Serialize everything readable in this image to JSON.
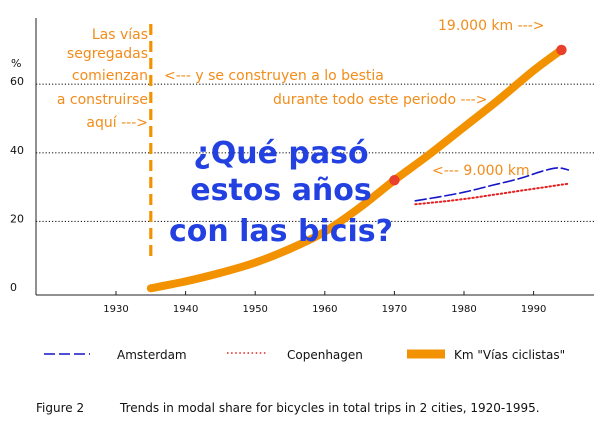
{
  "chart_data": {
    "type": "line",
    "title": "",
    "xlabel": "",
    "ylabel": "%",
    "xlim": [
      1920,
      1995
    ],
    "ylim": [
      0,
      60
    ],
    "x_ticks": [
      1930,
      1940,
      1950,
      1960,
      1970,
      1980,
      1990
    ],
    "y_ticks": [
      0,
      20,
      40,
      60
    ],
    "grid": "dotted horizontal at 20, 40, 60",
    "series": [
      {
        "name": "Amsterdam",
        "color": "#1515c8",
        "style": "dashed",
        "x": [
          1973,
          1976,
          1980,
          1984,
          1988,
          1991,
          1993,
          1994,
          1995
        ],
        "y": [
          26,
          27,
          28.5,
          30.5,
          32.5,
          34.5,
          35.5,
          35.5,
          35
        ]
      },
      {
        "name": "Copenhagen",
        "color": "#e62020",
        "style": "dotted",
        "x": [
          1973,
          1977,
          1981,
          1985,
          1989,
          1993,
          1995
        ],
        "y": [
          25,
          25.8,
          26.8,
          28,
          29.2,
          30.4,
          31
        ]
      },
      {
        "name": "Km \"Vías ciclistas\"",
        "color": "#f39200",
        "style": "thick",
        "x": [
          1935,
          1940,
          1945,
          1950,
          1955,
          1960,
          1965,
          1970,
          1975,
          1980,
          1985,
          1990,
          1994
        ],
        "y": [
          0.5,
          2.5,
          5,
          8,
          12,
          17,
          24,
          32,
          39.5,
          47.5,
          55.5,
          64,
          70
        ]
      }
    ],
    "markers": [
      {
        "x": 1970,
        "y": 32,
        "color": "#e8402a"
      },
      {
        "x": 1994,
        "y": 70,
        "color": "#e8402a"
      }
    ],
    "vline": {
      "x": 1935,
      "color": "#f39200"
    },
    "annotations": {
      "left": [
        "Las vías",
        "segregadas",
        "comienzan",
        "a construirse",
        "aquí --->"
      ],
      "arrow_line1": "<--- y se construyen a lo bestia",
      "arrow_line2": "durante todo este periodo --->",
      "km19000": "19.000 km --->",
      "km9000": "<--- 9.000 km",
      "question": [
        "¿Qué pasó",
        "estos años",
        "con las bicis?"
      ]
    },
    "caption": {
      "label": "Figure 2",
      "text": "Trends in modal share for bicycles in total trips in 2 cities, 1920-1995."
    }
  }
}
